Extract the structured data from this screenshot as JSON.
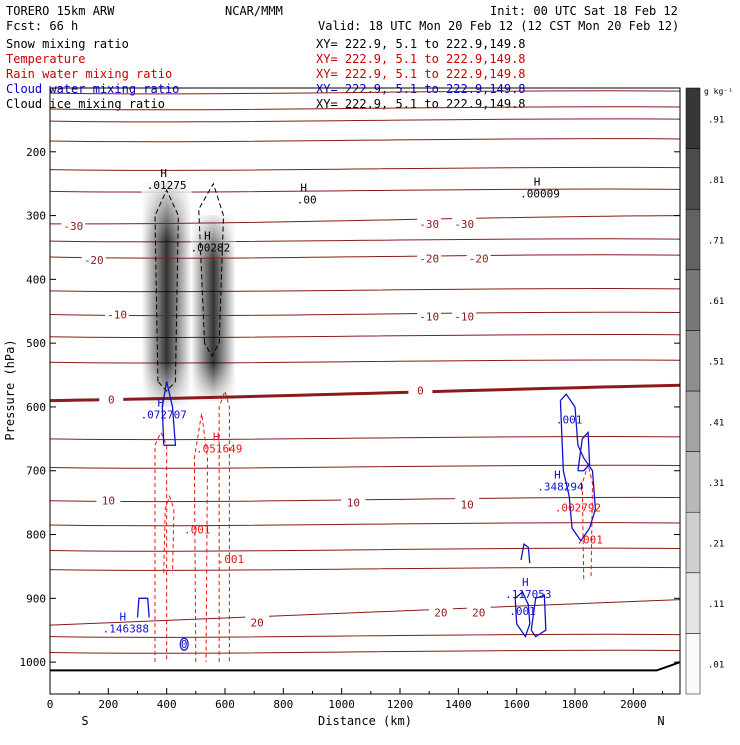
{
  "header": {
    "model": "TORERO  15km ARW",
    "org": "NCAR/MMM",
    "init": "Init: 00 UTC Sat 18 Feb 12",
    "fcst": "Fcst:   66 h",
    "valid": "Valid: 18 UTC Mon 20 Feb 12 (12 CST Mon 20 Feb 12)"
  },
  "legend": [
    {
      "label": "Snow mixing ratio",
      "xy": "XY= 222.9,  5.1 to 222.9,149.8",
      "color": "#000000"
    },
    {
      "label": "Temperature",
      "xy": "XY= 222.9,  5.1 to 222.9,149.8",
      "color": "#cc0000"
    },
    {
      "label": "Rain water mixing ratio",
      "xy": "XY= 222.9,  5.1 to 222.9,149.8",
      "color": "#cc0000"
    },
    {
      "label": "Cloud water mixing ratio",
      "xy": "XY= 222.9,  5.1 to 222.9,149.8",
      "color": "#0000cc"
    },
    {
      "label": "Cloud ice mixing ratio",
      "xy": "XY= 222.9,  5.1 to 222.9,149.8",
      "color": "#000000"
    }
  ],
  "colors": {
    "temperature": "#8b1a1a",
    "rain": "#ee1111",
    "cloud_water": "#1111cc",
    "snow": "#000000",
    "terrain": "#000000"
  },
  "chart_data": {
    "type": "cross-section contour",
    "xlabel": "Distance (km)",
    "ylabel": "Pressure (hPa)",
    "xlim": [
      0,
      2160
    ],
    "ylim": [
      1050,
      100
    ],
    "xticks": [
      0,
      200,
      400,
      600,
      800,
      1000,
      1200,
      1400,
      1600,
      1800,
      2000
    ],
    "yticks": [
      200,
      300,
      400,
      500,
      600,
      700,
      800,
      900,
      1000
    ],
    "left_end_label": "S",
    "right_end_label": "N",
    "temperature_isotherms": [
      {
        "label": "-30",
        "p_left": 313,
        "p_right": 300,
        "label_positions": [
          {
            "x": 80,
            "p": 316
          },
          {
            "x": 1300,
            "p": 313
          },
          {
            "x": 1420,
            "p": 313
          }
        ]
      },
      {
        "label": "-20",
        "p_left": 365,
        "p_right": 362,
        "label_positions": [
          {
            "x": 150,
            "p": 370
          },
          {
            "x": 1300,
            "p": 367
          },
          {
            "x": 1470,
            "p": 367
          }
        ]
      },
      {
        "label": "-10",
        "p_left": 455,
        "p_right": 452,
        "label_positions": [
          {
            "x": 230,
            "p": 455
          },
          {
            "x": 1300,
            "p": 458
          },
          {
            "x": 1420,
            "p": 458
          }
        ]
      },
      {
        "label": "0",
        "p_left": 590,
        "p_right": 566,
        "bold": true,
        "label_positions": [
          {
            "x": 210,
            "p": 588
          },
          {
            "x": 1270,
            "p": 574
          }
        ]
      },
      {
        "label": "10",
        "p_left": 747,
        "p_right": 742,
        "label_positions": [
          {
            "x": 200,
            "p": 747
          },
          {
            "x": 1040,
            "p": 750
          },
          {
            "x": 1430,
            "p": 753
          }
        ]
      },
      {
        "label": "20",
        "p_left": 942,
        "p_right": 902,
        "label_positions": [
          {
            "x": 710,
            "p": 938
          },
          {
            "x": 1340,
            "p": 922
          },
          {
            "x": 1470,
            "p": 922
          }
        ]
      }
    ],
    "background_isotherm_levels": [
      108,
      133,
      152,
      183,
      228,
      262,
      340,
      418,
      490,
      530,
      650,
      695,
      785,
      825,
      855,
      960,
      985
    ],
    "snow_max_labels": [
      {
        "x": 400,
        "p": 252,
        "h": "H",
        "value": ".01275"
      },
      {
        "x": 880,
        "p": 275,
        "h": "H",
        "value": ".00"
      },
      {
        "x": 1680,
        "p": 265,
        "h": "H",
        "value": ".00009"
      },
      {
        "x": 550,
        "p": 350,
        "h": "H",
        "value": ".00282"
      }
    ],
    "cloud_water_max_labels": [
      {
        "x": 390,
        "p": 612,
        "h": "H",
        "value": ".072707"
      },
      {
        "x": 1750,
        "p": 725,
        "h": "H",
        "value": ".348294"
      },
      {
        "x": 1640,
        "p": 893,
        "h": "H",
        "value": ".117053"
      },
      {
        "x": 260,
        "p": 947,
        "h": "H",
        "value": ".146388"
      },
      {
        "x": 1620,
        "p": 920,
        "h": "",
        "value": ".001"
      },
      {
        "x": 1780,
        "p": 620,
        "h": "",
        "value": ".001"
      },
      {
        "x": 460,
        "p": 972,
        "h": "",
        "value": "0"
      }
    ],
    "rain_max_labels": [
      {
        "x": 580,
        "p": 665,
        "h": "H",
        "value": ".051649"
      },
      {
        "x": 1810,
        "p": 758,
        "h": "",
        "value": ".002792"
      },
      {
        "x": 505,
        "p": 792,
        "h": "",
        "value": ".001"
      },
      {
        "x": 620,
        "p": 838,
        "h": "",
        "value": ".001"
      },
      {
        "x": 1850,
        "p": 808,
        "h": "",
        "value": ".001"
      }
    ],
    "shading_scale": {
      "unit": "g kg⁻¹",
      "levels": [
        ".01",
        ".11",
        ".21",
        ".31",
        ".41",
        ".51",
        ".61",
        ".71",
        ".81",
        ".91"
      ]
    },
    "terrain_pressure": [
      {
        "x": 0,
        "p": 1013
      },
      {
        "x": 2080,
        "p": 1013
      },
      {
        "x": 2130,
        "p": 1005
      },
      {
        "x": 2160,
        "p": 1000
      }
    ]
  }
}
